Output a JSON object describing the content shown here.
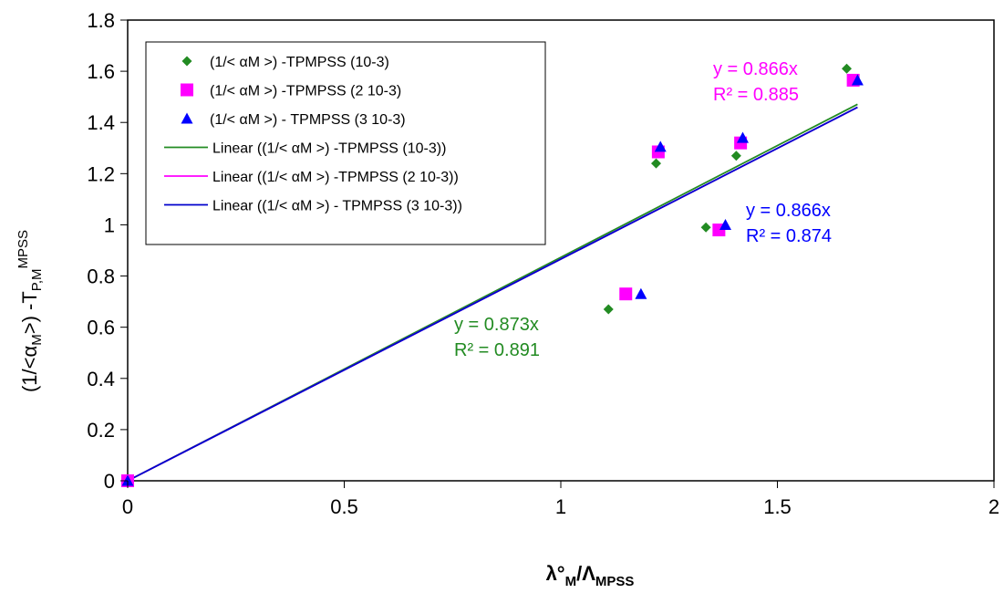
{
  "chart_data": {
    "type": "scatter",
    "xlim": [
      0,
      2
    ],
    "ylim": [
      0,
      1.8
    ],
    "x_ticks": [
      "0",
      "0.5",
      "1",
      "1.5",
      "2"
    ],
    "y_ticks": [
      "0",
      "0.2",
      "0.4",
      "0.6",
      "0.8",
      "1",
      "1.2",
      "1.4",
      "1.6",
      "1.8"
    ],
    "x_tick_values": [
      0,
      0.5,
      1,
      1.5,
      2
    ],
    "y_tick_values": [
      0,
      0.2,
      0.4,
      0.6,
      0.8,
      1,
      1.2,
      1.4,
      1.6,
      1.8
    ],
    "xlabel": {
      "main": "λ°",
      "sub1": "M",
      "mid": "/Λ",
      "sub2": "MPSS"
    },
    "ylabel": {
      "a": "(1/<α",
      "a_sub": "M",
      "b": ">) -T",
      "b_sub": "P,M",
      "b_sup": "MPSS"
    },
    "grid": false,
    "legend_position": "top-left",
    "series": [
      {
        "name": "(1/< αM >) -TPMPSS (10-3)",
        "marker": "diamond",
        "color": "#228b22",
        "points": [
          [
            0,
            0
          ],
          [
            1.11,
            0.67
          ],
          [
            1.22,
            1.24
          ],
          [
            1.335,
            0.99
          ],
          [
            1.405,
            1.27
          ],
          [
            1.66,
            1.61
          ]
        ]
      },
      {
        "name": "(1/< αM >) -TPMPSS (2 10-3)",
        "marker": "square",
        "color": "#ff00ff",
        "points": [
          [
            0,
            0
          ],
          [
            1.15,
            0.73
          ],
          [
            1.225,
            1.285
          ],
          [
            1.365,
            0.98
          ],
          [
            1.415,
            1.32
          ],
          [
            1.675,
            1.565
          ]
        ]
      },
      {
        "name": "(1/< αM >) - TPMPSS (3 10-3)",
        "marker": "triangle",
        "color": "#0000ff",
        "points": [
          [
            0,
            0
          ],
          [
            1.185,
            0.73
          ],
          [
            1.23,
            1.305
          ],
          [
            1.38,
            1.0
          ],
          [
            1.42,
            1.34
          ],
          [
            1.685,
            1.565
          ]
        ]
      }
    ],
    "trendlines": [
      {
        "name": "Linear ((1/< αM >) -TPMPSS (10-3))",
        "color": "#228b22",
        "slope": 0.873,
        "x_end": 1.685
      },
      {
        "name": "Linear ((1/< αM >) -TPMPSS (2 10-3))",
        "color": "#ff00ff",
        "slope": 0.866,
        "x_end": 1.685
      },
      {
        "name": "Linear ((1/< αM >) - TPMPSS (3 10-3))",
        "color": "#0000cd",
        "slope": 0.866,
        "x_end": 1.685
      }
    ],
    "annotations": [
      {
        "line1": "y = 0.873x",
        "line2": "R² = 0.891",
        "color": "#228b22"
      },
      {
        "line1": "y = 0.866x",
        "line2": "R² = 0.885",
        "color": "#ff00ff"
      },
      {
        "line1": "y = 0.866x",
        "line2": "R² = 0.874",
        "color": "#0000ff"
      }
    ]
  }
}
